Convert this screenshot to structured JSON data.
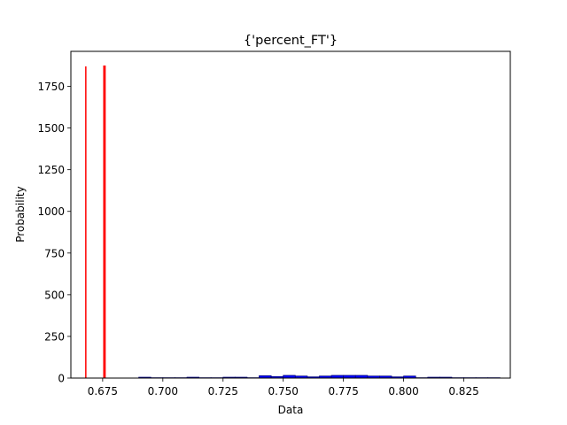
{
  "chart_data": {
    "type": "bar",
    "title": "{'percent_FT'}",
    "xlabel": "Data",
    "ylabel": "Probability",
    "xlim": [
      0.6618,
      0.8443
    ],
    "ylim": [
      0,
      1960
    ],
    "xticks": [
      0.675,
      0.7,
      0.725,
      0.75,
      0.775,
      0.8,
      0.825
    ],
    "xtick_labels": [
      "0.675",
      "0.700",
      "0.725",
      "0.750",
      "0.775",
      "0.800",
      "0.825"
    ],
    "yticks": [
      0,
      250,
      500,
      750,
      1000,
      1250,
      1500,
      1750
    ],
    "ytick_labels": [
      "0",
      "250",
      "500",
      "750",
      "1000",
      "1250",
      "1500",
      "1750"
    ],
    "grid": false,
    "legend": "none",
    "series": [
      {
        "kind": "histogram",
        "color": "#0000ff",
        "edgecolor": "#000080",
        "bin_width": 0.005,
        "bins": [
          {
            "x": 0.6925,
            "value": 5
          },
          {
            "x": 0.6975,
            "value": 2
          },
          {
            "x": 0.7025,
            "value": 2
          },
          {
            "x": 0.7075,
            "value": 2
          },
          {
            "x": 0.7125,
            "value": 5
          },
          {
            "x": 0.7175,
            "value": 2
          },
          {
            "x": 0.7225,
            "value": 2
          },
          {
            "x": 0.7275,
            "value": 5
          },
          {
            "x": 0.7325,
            "value": 5
          },
          {
            "x": 0.7375,
            "value": 2
          },
          {
            "x": 0.7425,
            "value": 14
          },
          {
            "x": 0.7475,
            "value": 9
          },
          {
            "x": 0.7525,
            "value": 16
          },
          {
            "x": 0.7575,
            "value": 12
          },
          {
            "x": 0.7625,
            "value": 7
          },
          {
            "x": 0.7675,
            "value": 12
          },
          {
            "x": 0.7725,
            "value": 16
          },
          {
            "x": 0.7775,
            "value": 16
          },
          {
            "x": 0.7825,
            "value": 16
          },
          {
            "x": 0.7875,
            "value": 12
          },
          {
            "x": 0.7925,
            "value": 12
          },
          {
            "x": 0.7975,
            "value": 7
          },
          {
            "x": 0.8025,
            "value": 12
          },
          {
            "x": 0.8075,
            "value": 2
          },
          {
            "x": 0.8125,
            "value": 5
          },
          {
            "x": 0.8175,
            "value": 5
          },
          {
            "x": 0.8225,
            "value": 2
          },
          {
            "x": 0.8275,
            "value": 2
          },
          {
            "x": 0.8325,
            "value": 2
          },
          {
            "x": 0.8375,
            "value": 2
          }
        ]
      },
      {
        "kind": "vline",
        "color": "#ff0000",
        "lines": [
          {
            "x": 0.668,
            "value": 1870
          },
          {
            "x": 0.6755,
            "value": 1875
          },
          {
            "x": 0.676,
            "value": 1875
          }
        ]
      }
    ]
  }
}
